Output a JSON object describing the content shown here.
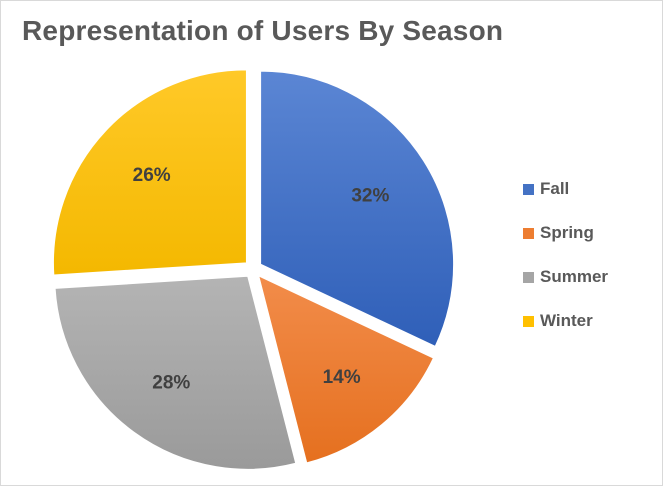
{
  "chart_data": {
    "type": "pie",
    "title": "Representation of Users By Season",
    "legend_position": "right",
    "slices": [
      {
        "name": "Fall",
        "value": 32,
        "label": "32%",
        "color": "#4472c4"
      },
      {
        "name": "Spring",
        "value": 14,
        "label": "14%",
        "color": "#ed7d31"
      },
      {
        "name": "Summer",
        "value": 28,
        "label": "28%",
        "color": "#a5a5a5"
      },
      {
        "name": "Winter",
        "value": 26,
        "label": "26%",
        "color": "#ffc000"
      }
    ]
  }
}
